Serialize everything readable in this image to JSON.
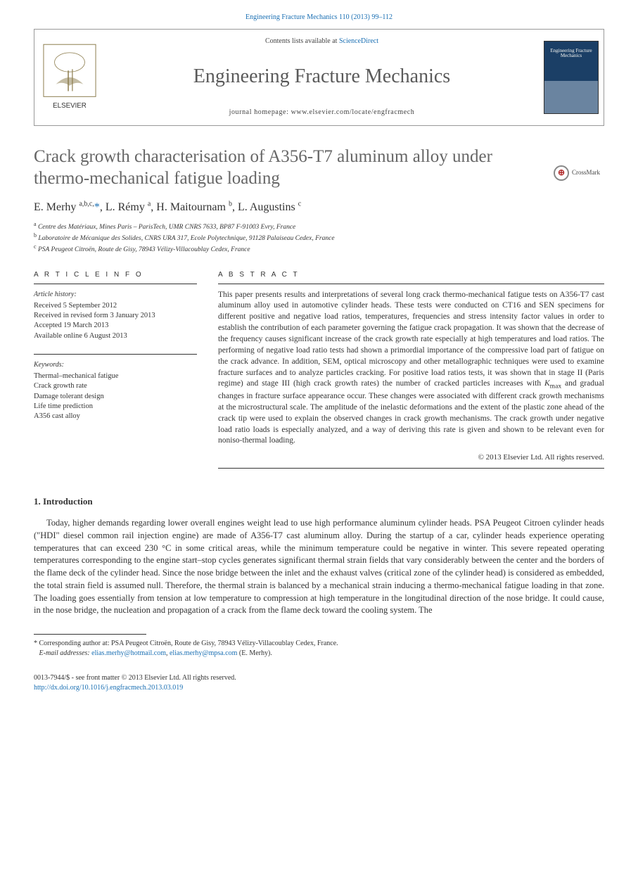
{
  "header": {
    "citation": "Engineering Fracture Mechanics 110 (2013) 99–112",
    "contents_prefix": "Contents lists available at ",
    "contents_link": "ScienceDirect",
    "journal_title": "Engineering Fracture Mechanics",
    "homepage_prefix": "journal homepage: ",
    "homepage_url": "www.elsevier.com/locate/engfracmech",
    "cover_text": "Engineering Fracture Mechanics",
    "publisher_label": "ELSEVIER"
  },
  "crossmark": {
    "label": "CrossMark"
  },
  "article": {
    "title": "Crack growth characterisation of A356-T7 aluminum alloy under thermo-mechanical fatigue loading",
    "authors_html": "E. Merhy <sup>a,b,c,</sup><a href=\"#\">*</a>, L. Rémy <sup>a</sup>, H. Maitournam <sup>b</sup>, L. Augustins <sup>c</sup>",
    "affiliations": [
      "Centre des Matériaux, Mines Paris – ParisTech, UMR CNRS 7633, BP87 F-91003 Evry, France",
      "Laboratoire de Mécanique des Solides, CNRS URA 317, Ecole Polytechnique, 91128 Palaiseau Cedex, France",
      "PSA Peugeot Citroën, Route de Gisy, 78943 Vélizy-Villacoublay Cedex, France"
    ],
    "aff_markers": [
      "a",
      "b",
      "c"
    ]
  },
  "info": {
    "label": "A R T I C L E   I N F O",
    "history_head": "Article history:",
    "history_lines": [
      "Received 5 September 2012",
      "Received in revised form 3 January 2013",
      "Accepted 19 March 2013",
      "Available online 6 August 2013"
    ],
    "keywords_head": "Keywords:",
    "keywords": [
      "Thermal–mechanical fatigue",
      "Crack growth rate",
      "Damage tolerant design",
      "Life time prediction",
      "A356 cast alloy"
    ]
  },
  "abstract": {
    "label": "A B S T R A C T",
    "text": "This paper presents results and interpretations of several long crack thermo-mechanical fatigue tests on A356-T7 cast aluminum alloy used in automotive cylinder heads. These tests were conducted on CT16 and SEN specimens for different positive and negative load ratios, temperatures, frequencies and stress intensity factor values in order to establish the contribution of each parameter governing the fatigue crack propagation. It was shown that the decrease of the frequency causes significant increase of the crack growth rate especially at high temperatures and load ratios. The performing of negative load ratio tests had shown a primordial importance of the compressive load part of fatigue on the crack advance. In addition, SEM, optical microscopy and other metallographic techniques were used to examine fracture surfaces and to analyze particles cracking. For positive load ratios tests, it was shown that in stage II (Paris regime) and stage III (high crack growth rates) the number of cracked particles increases with Kmax and gradual changes in fracture surface appearance occur. These changes were associated with different crack growth mechanisms at the microstructural scale. The amplitude of the inelastic deformations and the extent of the plastic zone ahead of the crack tip were used to explain the observed changes in crack growth mechanisms. The crack growth under negative load ratio loads is especially analyzed, and a way of deriving this rate is given and shown to be relevant even for noniso-thermal loading.",
    "copyright": "© 2013 Elsevier Ltd. All rights reserved."
  },
  "intro": {
    "heading": "1. Introduction",
    "paragraph": "Today, higher demands regarding lower overall engines weight lead to use high performance aluminum cylinder heads. PSA Peugeot Citroen cylinder heads (\"HDI\" diesel common rail injection engine) are made of A356-T7 cast aluminum alloy. During the startup of a car, cylinder heads experience operating temperatures that can exceed 230 °C in some critical areas, while the minimum temperature could be negative in winter. This severe repeated operating temperatures corresponding to the engine start–stop cycles generates significant thermal strain fields that vary considerably between the center and the borders of the flame deck of the cylinder head. Since the nose bridge between the inlet and the exhaust valves (critical zone of the cylinder head) is considered as embedded, the total strain field is assumed null. Therefore, the thermal strain is balanced by a mechanical strain inducing a thermo-mechanical fatigue loading in that zone. The loading goes essentially from tension at low temperature to compression at high temperature in the longitudinal direction of the nose bridge. It could cause, in the nose bridge, the nucleation and propagation of a crack from the flame deck toward the cooling system. The"
  },
  "corr": {
    "marker": "*",
    "text": "Corresponding author at: PSA Peugeot Citroën, Route de Gisy, 78943 Vélizy-Villacoublay Cedex, France.",
    "email_label": "E-mail addresses: ",
    "email1": "elias.merhy@hotmail.com",
    "email2": "elias.merhy@mpsa.com",
    "email_suffix": " (E. Merhy)."
  },
  "bottom": {
    "issn_line": "0013-7944/$ - see front matter © 2013 Elsevier Ltd. All rights reserved.",
    "doi_prefix": "http://dx.doi.org/",
    "doi": "10.1016/j.engfracmech.2013.03.019"
  },
  "colors": {
    "link": "#1a6fb3",
    "title_gray": "#666666",
    "rule": "#333333"
  }
}
